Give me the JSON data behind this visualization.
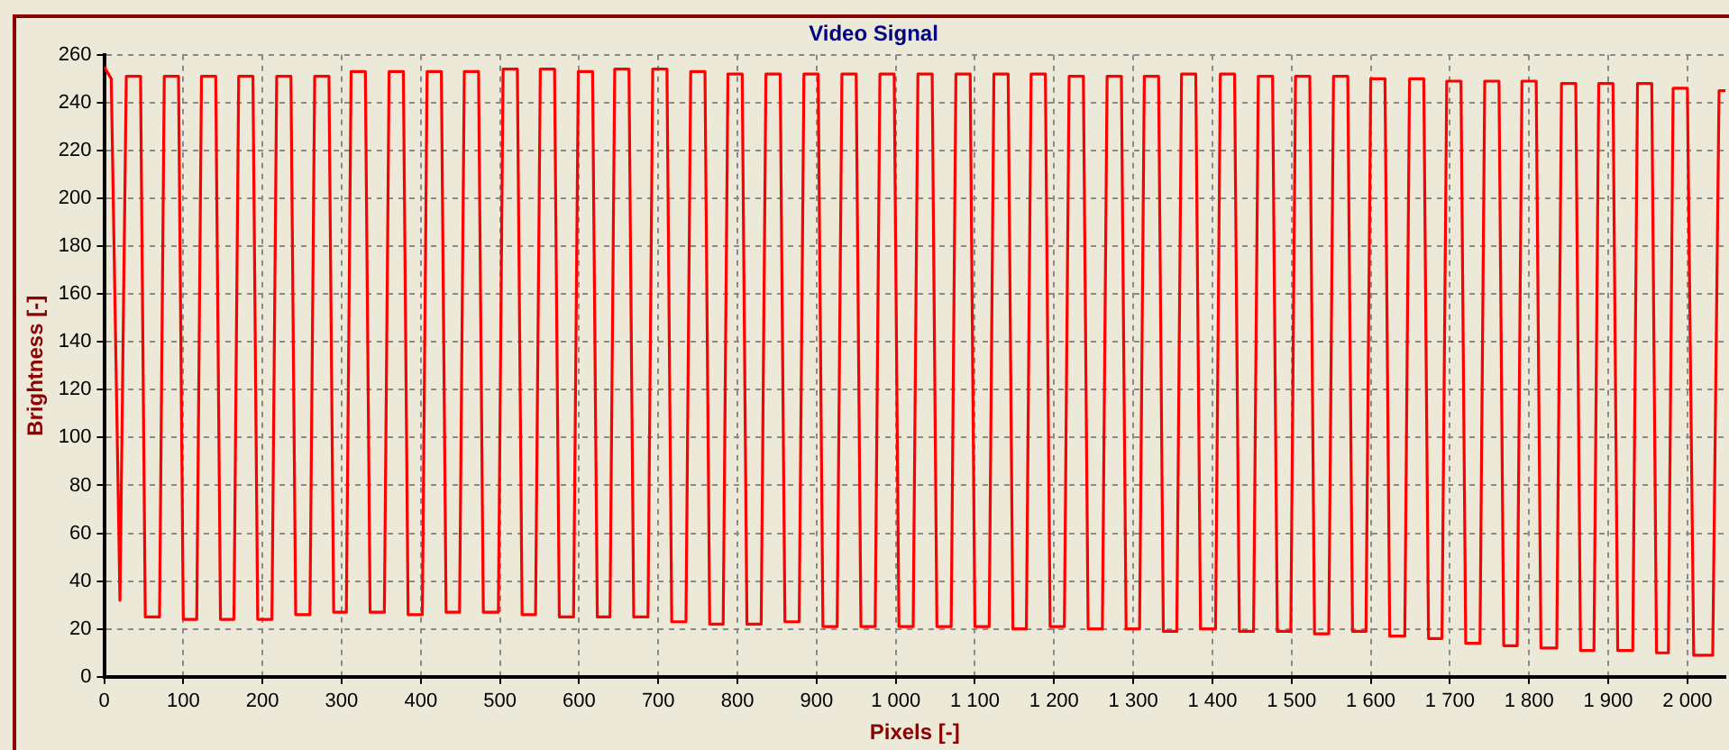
{
  "chart_data": {
    "type": "line",
    "title": "Video Signal",
    "xlabel": "Pixels [-]",
    "ylabel": "Brightness [-]",
    "xlim": [
      0,
      2048
    ],
    "ylim": [
      0,
      260
    ],
    "xticks": [
      0,
      100,
      200,
      300,
      400,
      500,
      600,
      700,
      800,
      900,
      {
        "value": 1000,
        "label": "1 000"
      },
      {
        "value": 1100,
        "label": "1 100"
      },
      {
        "value": 1200,
        "label": "1 200"
      },
      {
        "value": 1300,
        "label": "1 300"
      },
      {
        "value": 1400,
        "label": "1 400"
      },
      {
        "value": 1500,
        "label": "1 500"
      },
      {
        "value": 1600,
        "label": "1 600"
      },
      {
        "value": 1700,
        "label": "1 700"
      },
      {
        "value": 1800,
        "label": "1 800"
      },
      {
        "value": 1900,
        "label": "1 900"
      },
      {
        "value": 2000,
        "label": "2 000"
      }
    ],
    "yticks": [
      0,
      20,
      40,
      60,
      80,
      100,
      120,
      140,
      160,
      180,
      200,
      220,
      240,
      260
    ],
    "grid": true,
    "legend": false,
    "marker": "none",
    "line_style": "solid",
    "series": [
      {
        "color": "#ff0000",
        "x": [
          0,
          9,
          20,
          28,
          46,
          52,
          70,
          76,
          94,
          100,
          117,
          123,
          141,
          147,
          164,
          170,
          188,
          194,
          212,
          218,
          236,
          242,
          260,
          266,
          284,
          290,
          306,
          312,
          330,
          336,
          354,
          360,
          378,
          384,
          402,
          408,
          426,
          432,
          449,
          455,
          473,
          479,
          498,
          504,
          522,
          528,
          545,
          551,
          569,
          575,
          593,
          599,
          617,
          623,
          639,
          645,
          663,
          669,
          687,
          693,
          711,
          717,
          735,
          741,
          759,
          765,
          782,
          788,
          806,
          812,
          830,
          836,
          854,
          860,
          878,
          884,
          902,
          908,
          926,
          932,
          950,
          956,
          974,
          980,
          998,
          1004,
          1022,
          1028,
          1046,
          1052,
          1070,
          1076,
          1094,
          1100,
          1118,
          1124,
          1142,
          1148,
          1165,
          1171,
          1189,
          1195,
          1213,
          1219,
          1237,
          1243,
          1261,
          1267,
          1285,
          1291,
          1308,
          1314,
          1332,
          1338,
          1355,
          1361,
          1379,
          1385,
          1404,
          1410,
          1428,
          1434,
          1452,
          1458,
          1476,
          1482,
          1499,
          1505,
          1523,
          1529,
          1547,
          1553,
          1571,
          1577,
          1594,
          1600,
          1618,
          1624,
          1643,
          1649,
          1667,
          1673,
          1690,
          1696,
          1714,
          1720,
          1738,
          1744,
          1762,
          1768,
          1785,
          1791,
          1809,
          1815,
          1835,
          1841,
          1859,
          1865,
          1882,
          1888,
          1906,
          1912,
          1931,
          1937,
          1955,
          1961,
          1976,
          1982,
          2000,
          2008,
          2032,
          2040,
          2048
        ],
        "values": [
          255,
          250,
          32,
          251,
          251,
          25,
          25,
          251,
          251,
          24,
          24,
          251,
          251,
          24,
          24,
          251,
          251,
          24,
          24,
          251,
          251,
          26,
          26,
          251,
          251,
          27,
          27,
          253,
          253,
          27,
          27,
          253,
          253,
          26,
          26,
          253,
          253,
          27,
          27,
          253,
          253,
          27,
          27,
          254,
          254,
          26,
          26,
          254,
          254,
          25,
          25,
          253,
          253,
          25,
          25,
          254,
          254,
          25,
          25,
          254,
          254,
          23,
          23,
          253,
          253,
          22,
          22,
          252,
          252,
          22,
          22,
          252,
          252,
          23,
          23,
          252,
          252,
          21,
          21,
          252,
          252,
          21,
          21,
          252,
          252,
          21,
          21,
          252,
          252,
          21,
          21,
          252,
          252,
          21,
          21,
          252,
          252,
          20,
          20,
          252,
          252,
          21,
          21,
          251,
          251,
          20,
          20,
          251,
          251,
          20,
          20,
          251,
          251,
          19,
          19,
          252,
          252,
          20,
          20,
          252,
          252,
          19,
          19,
          251,
          251,
          19,
          19,
          251,
          251,
          18,
          18,
          251,
          251,
          19,
          19,
          250,
          250,
          17,
          17,
          250,
          250,
          16,
          16,
          249,
          249,
          14,
          14,
          249,
          249,
          13,
          13,
          249,
          249,
          12,
          12,
          248,
          248,
          11,
          11,
          248,
          248,
          11,
          11,
          248,
          248,
          10,
          10,
          246,
          246,
          9,
          9,
          245,
          245
        ]
      }
    ]
  }
}
